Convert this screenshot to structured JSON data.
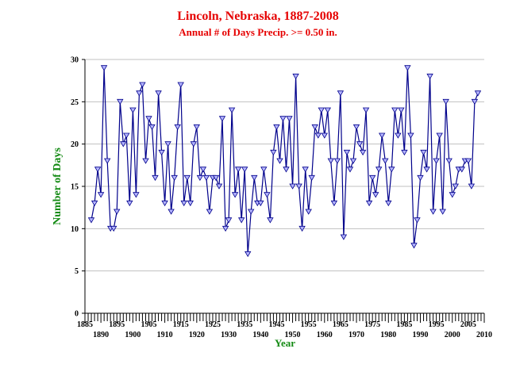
{
  "chart_data": {
    "type": "line",
    "title": "Lincoln, Nebraska, 1887-2008",
    "subtitle": "Annual # of Days Precip. >= 0.50 in.",
    "xlabel": "Year",
    "ylabel": "Number of Days",
    "xlim": [
      1885,
      2010
    ],
    "ylim": [
      0,
      30
    ],
    "grid": true,
    "x_ticks_top": [
      "1885",
      "1895",
      "1905",
      "1915",
      "1925",
      "1935",
      "1945",
      "1955",
      "1965",
      "1975",
      "1985",
      "1995",
      "2005"
    ],
    "x_ticks_bottom": [
      "1890",
      "1900",
      "1910",
      "1920",
      "1930",
      "1940",
      "1950",
      "1960",
      "1970",
      "1980",
      "1990",
      "2000",
      "2010"
    ],
    "y_ticks": [
      "0",
      "5",
      "10",
      "15",
      "20",
      "25",
      "30"
    ],
    "line_color": "#00008b",
    "marker_fill": "#b4b4ff",
    "x": [
      1887,
      1888,
      1889,
      1890,
      1891,
      1892,
      1893,
      1894,
      1895,
      1896,
      1897,
      1898,
      1899,
      1900,
      1901,
      1902,
      1903,
      1904,
      1905,
      1906,
      1907,
      1908,
      1909,
      1910,
      1911,
      1912,
      1913,
      1914,
      1915,
      1916,
      1917,
      1918,
      1919,
      1920,
      1921,
      1922,
      1923,
      1924,
      1925,
      1926,
      1927,
      1928,
      1929,
      1930,
      1931,
      1932,
      1933,
      1934,
      1935,
      1936,
      1937,
      1938,
      1939,
      1940,
      1941,
      1942,
      1943,
      1944,
      1945,
      1946,
      1947,
      1948,
      1949,
      1950,
      1951,
      1952,
      1953,
      1954,
      1955,
      1956,
      1957,
      1958,
      1959,
      1960,
      1961,
      1962,
      1963,
      1964,
      1965,
      1966,
      1967,
      1968,
      1969,
      1970,
      1971,
      1972,
      1973,
      1974,
      1975,
      1976,
      1977,
      1978,
      1979,
      1980,
      1981,
      1982,
      1983,
      1984,
      1985,
      1986,
      1987,
      1988,
      1989,
      1990,
      1991,
      1992,
      1993,
      1994,
      1995,
      1996,
      1997,
      1998,
      1999,
      2000,
      2001,
      2002,
      2003,
      2004,
      2005,
      2006,
      2007,
      2008
    ],
    "y": [
      11,
      13,
      17,
      14,
      29,
      18,
      10,
      10,
      12,
      25,
      20,
      21,
      13,
      24,
      14,
      26,
      27,
      18,
      23,
      22,
      16,
      26,
      19,
      13,
      20,
      12,
      16,
      22,
      27,
      13,
      16,
      13,
      20,
      22,
      16,
      17,
      16,
      12,
      16,
      16,
      15,
      23,
      10,
      11,
      24,
      14,
      17,
      11,
      17,
      7,
      12,
      16,
      13,
      13,
      17,
      14,
      11,
      19,
      22,
      18,
      23,
      17,
      23,
      15,
      28,
      15,
      10,
      17,
      12,
      16,
      22,
      21,
      24,
      21,
      24,
      18,
      13,
      18,
      26,
      9,
      19,
      17,
      18,
      22,
      20,
      19,
      24,
      13,
      16,
      14,
      17,
      21,
      18,
      13,
      17,
      24,
      21,
      24,
      19,
      29,
      21,
      8,
      11,
      16,
      19,
      17,
      28,
      12,
      18,
      21,
      12,
      25,
      18,
      14,
      15,
      17,
      17,
      18,
      18,
      15,
      25,
      26
    ]
  }
}
